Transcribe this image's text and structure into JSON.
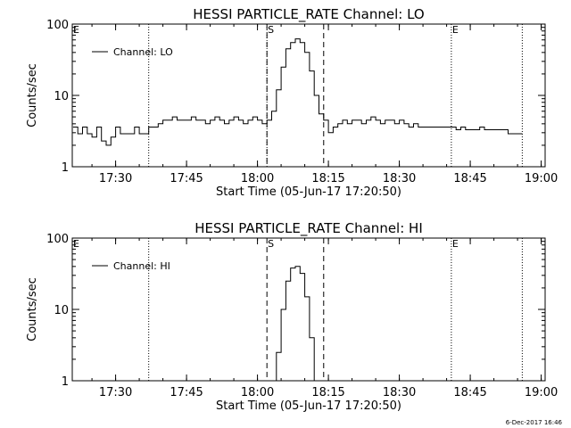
{
  "footer_timestamp": "6-Dec-2017 16:46",
  "chart_data": [
    {
      "type": "line",
      "title": "HESSI PARTICLE_RATE Channel: LO",
      "xlabel": "Start Time (05-Jun-17 17:20:50)",
      "ylabel": "Counts/sec",
      "yscale": "log",
      "ylim": [
        1,
        100
      ],
      "xlim": [
        "17:20:50",
        "19:00:50"
      ],
      "xticks": [
        "17:30",
        "17:45",
        "18:00",
        "18:15",
        "18:30",
        "18:45",
        "19:00"
      ],
      "yticks": [
        "1",
        "10",
        "100"
      ],
      "legend": {
        "entries": [
          "Channel: LO"
        ],
        "position": "top-left"
      },
      "annotations": [
        "E",
        "S",
        "E"
      ],
      "vlines_dotted": [
        "17:37",
        "18:02",
        "18:41",
        "18:56"
      ],
      "vlines_dashed": [
        "18:02",
        "18:14"
      ],
      "series": [
        {
          "name": "Channel: LO",
          "x": [
            "17:21",
            "17:22",
            "17:23",
            "17:24",
            "17:25",
            "17:26",
            "17:27",
            "17:28",
            "17:29",
            "17:30",
            "17:31",
            "17:32",
            "17:33",
            "17:34",
            "17:35",
            "17:36",
            "17:37",
            "17:38",
            "17:39",
            "17:40",
            "17:41",
            "17:42",
            "17:43",
            "17:44",
            "17:45",
            "17:46",
            "17:47",
            "17:48",
            "17:49",
            "17:50",
            "17:51",
            "17:52",
            "17:53",
            "17:54",
            "17:55",
            "17:56",
            "17:57",
            "17:58",
            "17:59",
            "18:00",
            "18:01",
            "18:02",
            "18:03",
            "18:04",
            "18:05",
            "18:06",
            "18:07",
            "18:08",
            "18:09",
            "18:10",
            "18:11",
            "18:12",
            "18:13",
            "18:14",
            "18:15",
            "18:16",
            "18:17",
            "18:18",
            "18:19",
            "18:20",
            "18:21",
            "18:22",
            "18:23",
            "18:24",
            "18:25",
            "18:26",
            "18:27",
            "18:28",
            "18:29",
            "18:30",
            "18:31",
            "18:32",
            "18:33",
            "18:34",
            "18:35",
            "18:36",
            "18:37",
            "18:38",
            "18:39",
            "18:40",
            "18:41",
            "18:42",
            "18:43",
            "18:44",
            "18:45",
            "18:46",
            "18:47",
            "18:48",
            "18:49",
            "18:50",
            "18:51",
            "18:52",
            "18:53",
            "18:54",
            "18:55",
            "18:56"
          ],
          "y": [
            3.6,
            2.9,
            3.6,
            2.9,
            2.6,
            3.6,
            2.3,
            2.0,
            2.6,
            3.6,
            2.9,
            2.9,
            2.9,
            3.6,
            2.9,
            2.9,
            3.6,
            3.6,
            4.0,
            4.5,
            4.5,
            5.0,
            4.5,
            4.5,
            4.5,
            5.0,
            4.5,
            4.5,
            4.0,
            4.5,
            5.0,
            4.5,
            4.0,
            4.5,
            5.0,
            4.5,
            4.0,
            4.5,
            5.0,
            4.5,
            4.0,
            4.5,
            6.0,
            12,
            25,
            45,
            55,
            62,
            55,
            40,
            22,
            10,
            5.5,
            4.5,
            3.0,
            3.6,
            4.0,
            4.5,
            4.0,
            4.5,
            4.5,
            4.0,
            4.5,
            5.0,
            4.5,
            4.0,
            4.5,
            4.5,
            4.0,
            4.5,
            4.0,
            3.6,
            4.0,
            3.6,
            3.6,
            3.6,
            3.6,
            3.6,
            3.6,
            3.6,
            3.6,
            3.3,
            3.6,
            3.3,
            3.3,
            3.3,
            3.6,
            3.3,
            3.3,
            3.3,
            3.3,
            3.3,
            2.9,
            2.9,
            2.9,
            2.9
          ]
        }
      ]
    },
    {
      "type": "line",
      "title": "HESSI PARTICLE_RATE Channel: HI",
      "xlabel": "Start Time (05-Jun-17 17:20:50)",
      "ylabel": "Counts/sec",
      "yscale": "log",
      "ylim": [
        1,
        100
      ],
      "xlim": [
        "17:20:50",
        "19:00:50"
      ],
      "xticks": [
        "17:30",
        "17:45",
        "18:00",
        "18:15",
        "18:30",
        "18:45",
        "19:00"
      ],
      "yticks": [
        "1",
        "10",
        "100"
      ],
      "legend": {
        "entries": [
          "Channel: HI"
        ],
        "position": "top-left"
      },
      "annotations": [
        "E",
        "S",
        "E"
      ],
      "vlines_dotted": [
        "17:37",
        "18:41",
        "18:56"
      ],
      "vlines_dashed": [
        "18:02",
        "18:14"
      ],
      "series": [
        {
          "name": "Channel: HI",
          "x": [
            "18:03",
            "18:04",
            "18:05",
            "18:06",
            "18:07",
            "18:08",
            "18:09",
            "18:10",
            "18:11",
            "18:12"
          ],
          "y": [
            1.0,
            2.5,
            10,
            25,
            38,
            40,
            32,
            15,
            4.0,
            1.0
          ]
        }
      ]
    }
  ]
}
